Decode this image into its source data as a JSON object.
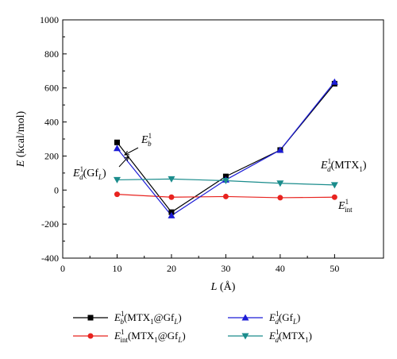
{
  "chart_data": {
    "type": "line",
    "x": [
      10,
      20,
      30,
      40,
      50
    ],
    "xlim": [
      0,
      59
    ],
    "ylim": [
      -400,
      1000
    ],
    "xticks": [
      0,
      10,
      20,
      30,
      40,
      50
    ],
    "yticks": [
      -400,
      -200,
      0,
      200,
      400,
      600,
      800,
      1000
    ],
    "xlabel": {
      "var": "L",
      "unit": "(Å)"
    },
    "ylabel": {
      "var": "E",
      "unit": "(kcal/mol)"
    },
    "grid": false,
    "legend_position": "bottom",
    "series": [
      {
        "key": "eb",
        "color": "#000000",
        "marker": "square",
        "values": [
          280,
          -130,
          80,
          235,
          625
        ],
        "legend": {
          "main": "E",
          "sub": "b",
          "sup": "1",
          "arg": "MTX",
          "arg_sub": "1",
          "arg_tail": "@Gf",
          "arg_tail_sub": "L"
        }
      },
      {
        "key": "eint",
        "color": "#e8231f",
        "marker": "circle",
        "values": [
          -25,
          -42,
          -38,
          -45,
          -42
        ],
        "legend": {
          "main": "E",
          "sub": "int",
          "sup": "1",
          "arg": "MTX",
          "arg_sub": "1",
          "arg_tail": "@Gf",
          "arg_tail_sub": "L"
        }
      },
      {
        "key": "edgf",
        "color": "#1c1cd6",
        "marker": "triangle-up",
        "values": [
          245,
          -150,
          60,
          235,
          635
        ],
        "legend": {
          "main": "E",
          "sub": "d",
          "sup": "1",
          "arg": "Gf",
          "arg_sub": "L",
          "arg_tail": "",
          "arg_tail_sub": ""
        }
      },
      {
        "key": "edmtx",
        "color": "#1a8c8c",
        "marker": "triangle-down",
        "values": [
          60,
          65,
          55,
          40,
          30
        ],
        "legend": {
          "main": "E",
          "sub": "d",
          "sup": "1",
          "arg": "MTX",
          "arg_sub": "1",
          "arg_tail": "",
          "arg_tail_sub": ""
        }
      }
    ],
    "annotations": [
      {
        "key": "eb",
        "main": "E",
        "sub": "b",
        "sup": "1",
        "arg": "",
        "arg_sub": ""
      },
      {
        "key": "edgf",
        "main": "E",
        "sub": "d",
        "sup": "1",
        "arg": "Gf",
        "arg_sub": "L"
      },
      {
        "key": "edmtx",
        "main": "E",
        "sub": "d",
        "sup": "1",
        "arg": "MTX",
        "arg_sub": "1"
      },
      {
        "key": "eint",
        "main": "E",
        "sub": "int",
        "sup": "1",
        "arg": "",
        "arg_sub": ""
      }
    ]
  }
}
